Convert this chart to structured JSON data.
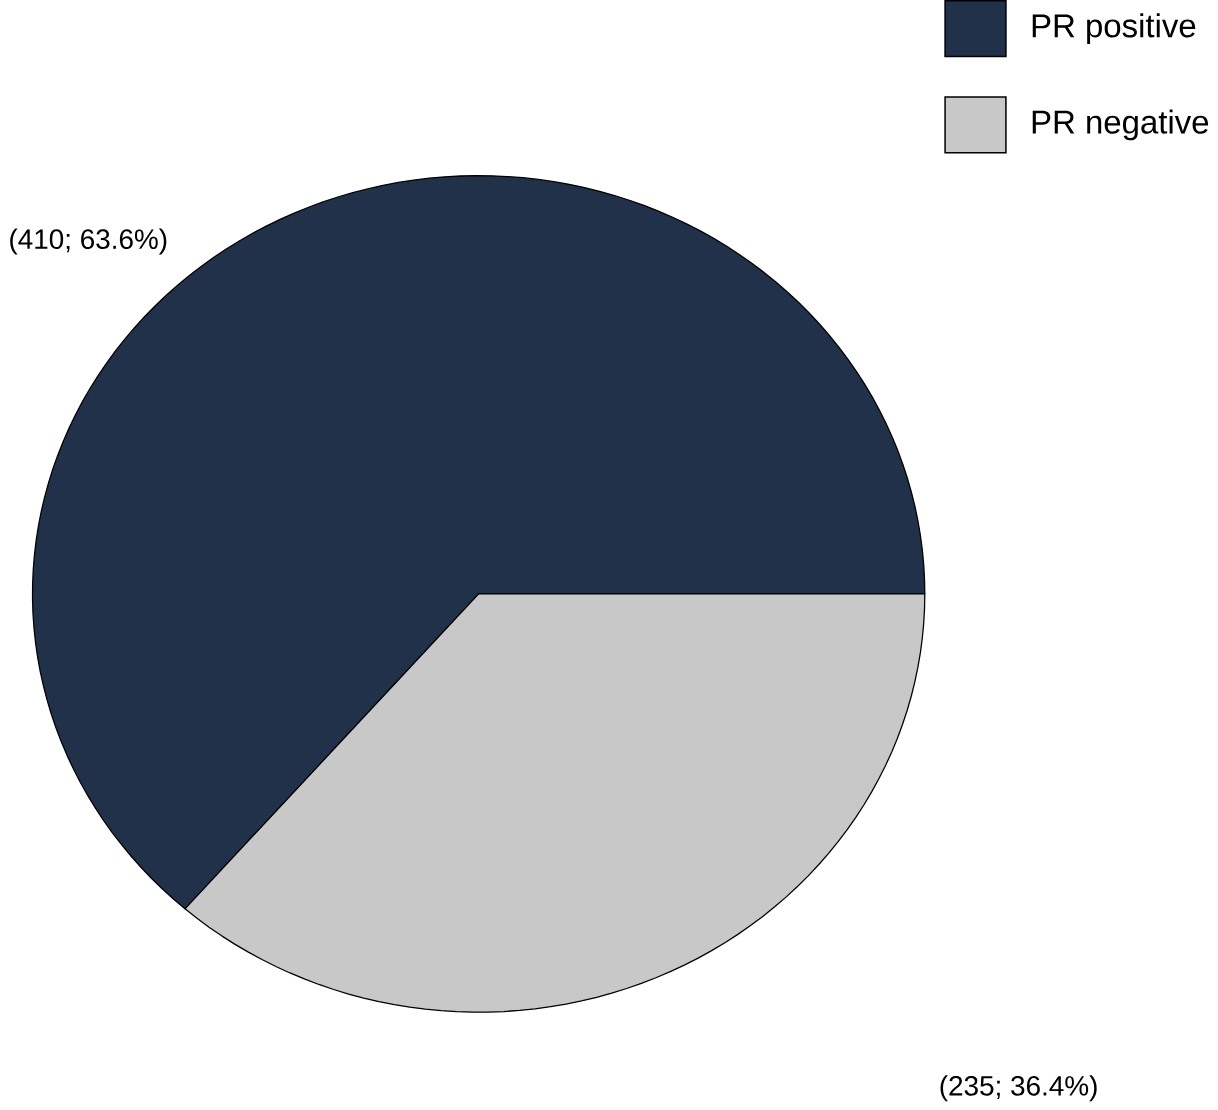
{
  "chart_data": {
    "type": "pie",
    "categories": [
      "PR positive",
      "PR negative"
    ],
    "values": [
      410,
      235
    ],
    "colors": [
      "#22314a",
      "#c8c8c8"
    ],
    "value_labels": [
      "(410; 63.6%)",
      "(235; 36.4%)"
    ],
    "legend": "top right"
  }
}
